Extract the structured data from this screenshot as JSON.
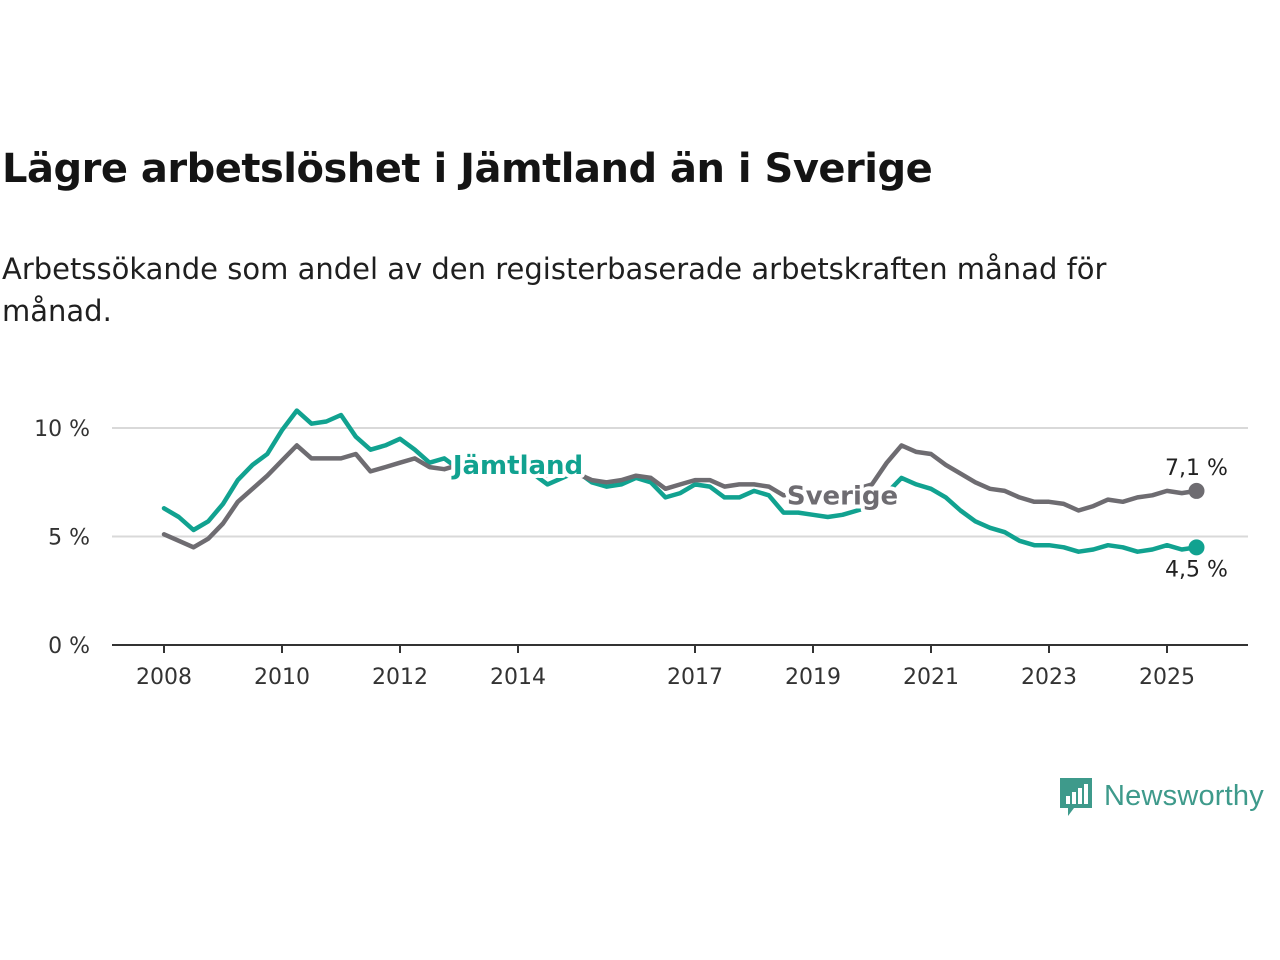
{
  "title": "Lägre arbetslöshet i Jämtland än i Sverige",
  "subtitle": "Arbetssökande som andel av den registerbaserade arbetskraften månad för månad.",
  "brand": "Newsworthy",
  "chart_data": {
    "type": "line",
    "title": "Lägre arbetslöshet i Jämtland än i Sverige",
    "subtitle": "Arbetssökande som andel av den registerbaserade arbetskraften månad för månad.",
    "x_ticks": [
      "2008",
      "2010",
      "2012",
      "2014",
      "2017",
      "2019",
      "2021",
      "2023",
      "2025"
    ],
    "y_ticks": [
      0,
      5,
      10
    ],
    "y_tick_labels": [
      "0 %",
      "5 %",
      "10 %"
    ],
    "ylim": [
      0,
      10
    ],
    "grid": "horizontal",
    "series": [
      {
        "name": "Jämtland",
        "color": "#11a290",
        "end_label": "4,5 %",
        "x": [
          "2008-01",
          "2008-04",
          "2008-07",
          "2008-10",
          "2009-01",
          "2009-04",
          "2009-07",
          "2009-10",
          "2010-01",
          "2010-04",
          "2010-07",
          "2010-10",
          "2011-01",
          "2011-04",
          "2011-07",
          "2011-10",
          "2012-01",
          "2012-04",
          "2012-07",
          "2012-10",
          "2013-01",
          "2013-04",
          "2013-07",
          "2013-10",
          "2014-01",
          "2014-04",
          "2014-07",
          "2014-10",
          "2015-01",
          "2015-04",
          "2015-07",
          "2015-10",
          "2016-01",
          "2016-04",
          "2016-07",
          "2016-10",
          "2017-01",
          "2017-04",
          "2017-07",
          "2017-10",
          "2018-01",
          "2018-04",
          "2018-07",
          "2018-10",
          "2019-01",
          "2019-04",
          "2019-07",
          "2019-10",
          "2020-01",
          "2020-04",
          "2020-07",
          "2020-10",
          "2021-01",
          "2021-04",
          "2021-07",
          "2021-10",
          "2022-01",
          "2022-04",
          "2022-07",
          "2022-10",
          "2023-01",
          "2023-04",
          "2023-07",
          "2023-10",
          "2024-01",
          "2024-04",
          "2024-07",
          "2024-10",
          "2025-01",
          "2025-04",
          "2025-07"
        ],
        "y": [
          6.3,
          5.9,
          5.3,
          5.7,
          6.5,
          7.6,
          8.3,
          8.8,
          9.9,
          10.8,
          10.2,
          10.3,
          10.6,
          9.6,
          9.0,
          9.2,
          9.5,
          9.0,
          8.4,
          8.6,
          8.1,
          8.3,
          8.2,
          8.0,
          8.1,
          7.9,
          7.4,
          7.7,
          8.0,
          7.5,
          7.3,
          7.4,
          7.7,
          7.5,
          6.8,
          7.0,
          7.4,
          7.3,
          6.8,
          6.8,
          7.1,
          6.9,
          6.1,
          6.1,
          6.0,
          5.9,
          6.0,
          6.2,
          6.4,
          7.0,
          7.7,
          7.4,
          7.2,
          6.8,
          6.2,
          5.7,
          5.4,
          5.2,
          4.8,
          4.6,
          4.6,
          4.5,
          4.3,
          4.4,
          4.6,
          4.5,
          4.3,
          4.4,
          4.6,
          4.4,
          4.5
        ]
      },
      {
        "name": "Sverige",
        "color": "#6e6c71",
        "end_label": "7,1 %",
        "x": [
          "2008-01",
          "2008-04",
          "2008-07",
          "2008-10",
          "2009-01",
          "2009-04",
          "2009-07",
          "2009-10",
          "2010-01",
          "2010-04",
          "2010-07",
          "2010-10",
          "2011-01",
          "2011-04",
          "2011-07",
          "2011-10",
          "2012-01",
          "2012-04",
          "2012-07",
          "2012-10",
          "2013-01",
          "2013-04",
          "2013-07",
          "2013-10",
          "2014-01",
          "2014-04",
          "2014-07",
          "2014-10",
          "2015-01",
          "2015-04",
          "2015-07",
          "2015-10",
          "2016-01",
          "2016-04",
          "2016-07",
          "2016-10",
          "2017-01",
          "2017-04",
          "2017-07",
          "2017-10",
          "2018-01",
          "2018-04",
          "2018-07",
          "2018-10",
          "2019-01",
          "2019-04",
          "2019-07",
          "2019-10",
          "2020-01",
          "2020-04",
          "2020-07",
          "2020-10",
          "2021-01",
          "2021-04",
          "2021-07",
          "2021-10",
          "2022-01",
          "2022-04",
          "2022-07",
          "2022-10",
          "2023-01",
          "2023-04",
          "2023-07",
          "2023-10",
          "2024-01",
          "2024-04",
          "2024-07",
          "2024-10",
          "2025-01",
          "2025-04",
          "2025-07"
        ],
        "y": [
          5.1,
          4.8,
          4.5,
          4.9,
          5.6,
          6.6,
          7.2,
          7.8,
          8.5,
          9.2,
          8.6,
          8.6,
          8.6,
          8.8,
          8.0,
          8.2,
          8.4,
          8.6,
          8.2,
          8.1,
          8.3,
          8.3,
          8.2,
          8.1,
          8.1,
          8.0,
          7.8,
          7.9,
          7.9,
          7.6,
          7.5,
          7.6,
          7.8,
          7.7,
          7.2,
          7.4,
          7.6,
          7.6,
          7.3,
          7.4,
          7.4,
          7.3,
          6.9,
          6.9,
          7.0,
          6.9,
          7.0,
          7.2,
          7.4,
          8.4,
          9.2,
          8.9,
          8.8,
          8.3,
          7.9,
          7.5,
          7.2,
          7.1,
          6.8,
          6.6,
          6.6,
          6.5,
          6.2,
          6.4,
          6.7,
          6.6,
          6.8,
          6.9,
          7.1,
          7.0,
          7.1
        ]
      }
    ]
  }
}
